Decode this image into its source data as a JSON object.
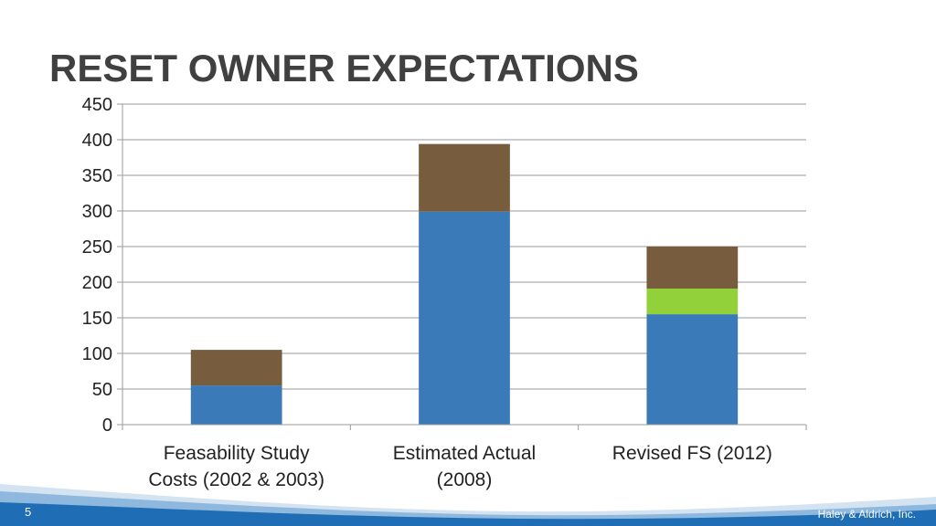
{
  "slide": {
    "title": "RESET OWNER EXPECTATIONS",
    "page_number": "5",
    "company": "Haley & Aldrich, Inc."
  },
  "colors": {
    "blue": "#3b7ab8",
    "green": "#93d13a",
    "brown": "#775d3e",
    "footer_blue": "#1f6db4"
  },
  "chart_data": {
    "type": "bar",
    "stacked": true,
    "categories": [
      [
        "Feasability Study",
        "Costs (2002 & 2003)"
      ],
      [
        "Estimated Actual",
        "(2008)"
      ],
      [
        "Revised FS (2012)"
      ]
    ],
    "series": [
      {
        "values": [
          55,
          299,
          155
        ],
        "color": "#3b7ab8"
      },
      {
        "values": [
          0,
          0,
          36
        ],
        "color": "#93d13a"
      },
      {
        "values": [
          50,
          95,
          59
        ],
        "color": "#775d3e"
      }
    ],
    "ylim": [
      0,
      450
    ],
    "yticks": [
      0,
      50,
      100,
      150,
      200,
      250,
      300,
      350,
      400,
      450
    ],
    "grid": true,
    "legend": "none"
  }
}
